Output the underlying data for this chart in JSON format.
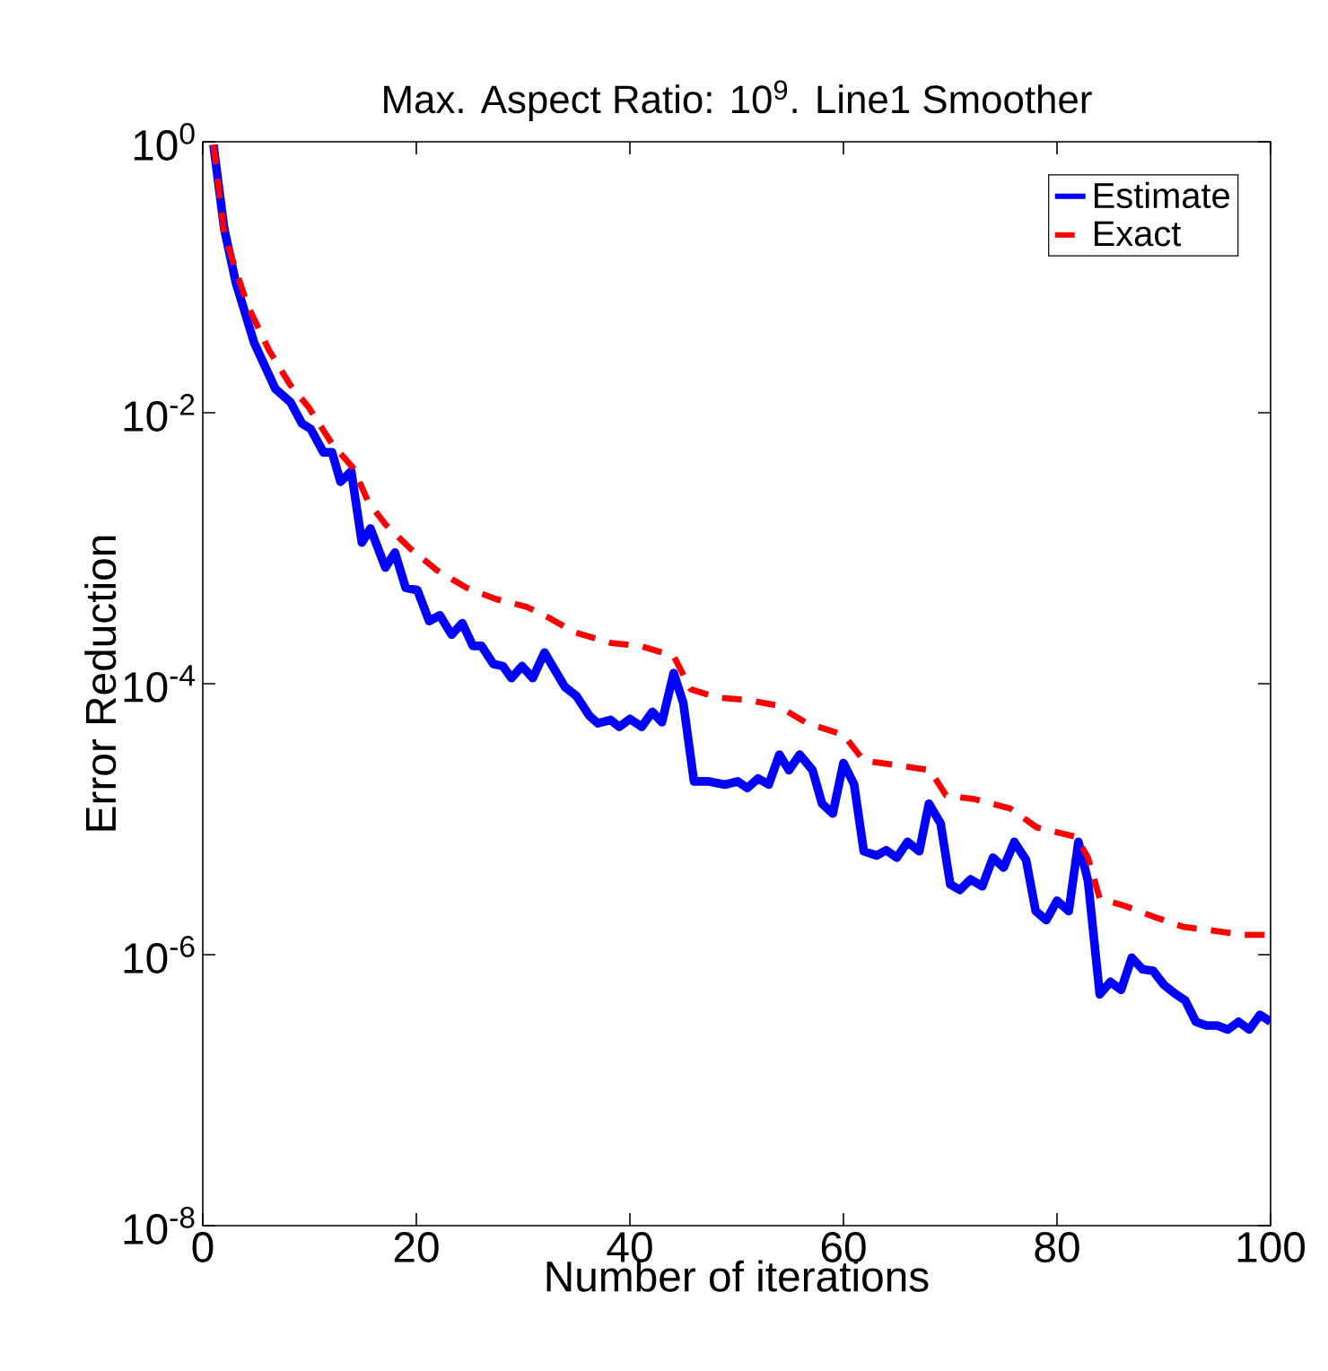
{
  "chart_data": {
    "type": "line",
    "title": "Max. Aspect Ratio: 10$^{9}$. Line1 Smoother",
    "xlabel": "Number of iterations",
    "ylabel": "Error Reduction",
    "log": "y",
    "legend": "top right",
    "xlim": [
      0,
      100
    ],
    "xticks": [
      0,
      20,
      40,
      60,
      80,
      100
    ],
    "ylim": [
      1e-08,
      1
    ],
    "yticks": [
      {
        "value": 1e-08,
        "label": "10$^{-8}$"
      },
      {
        "value": 1e-06,
        "label": "10$^{-6}$"
      },
      {
        "value": 0.0001,
        "label": "10$^{-4}$"
      },
      {
        "value": 0.01,
        "label": "10$^{-2}$"
      },
      {
        "value": 1,
        "label": "10$^{0}$"
      }
    ],
    "series": [
      {
        "name": "Estimate",
        "color": "#0000ff",
        "line_style": "solid",
        "x": [
          1,
          2,
          3.1,
          4.8,
          6.8,
          8.2,
          9.3,
          10.1,
          11.3,
          12.1,
          12.9,
          13.9,
          14.9,
          15.7,
          17.1,
          18,
          19,
          20.1,
          21.2,
          22.2,
          23.3,
          24.3,
          25.3,
          26.1,
          27.2,
          28.1,
          28.9,
          29.9,
          30.9,
          32,
          33.9,
          35,
          36.2,
          37,
          38.2,
          39,
          40,
          41.1,
          42.1,
          43,
          44.1,
          45,
          46,
          47.4,
          48.9,
          50.1,
          51,
          52,
          53,
          54,
          54.9,
          55.9,
          57.1,
          58,
          59,
          60,
          61,
          61.9,
          63.1,
          64,
          65,
          66,
          67.1,
          68,
          69.1,
          70,
          70.9,
          71.9,
          73,
          74,
          75,
          76,
          77.1,
          78,
          79,
          80,
          81.1,
          82,
          82.9,
          84,
          85,
          86,
          87,
          88,
          89,
          90,
          91,
          92,
          93,
          94,
          95,
          96,
          97,
          98,
          99,
          100
        ],
        "values": [
          0.95,
          0.23,
          0.091,
          0.033,
          0.015,
          0.012,
          0.0083,
          0.0076,
          0.0051,
          0.0051,
          0.0031,
          0.0037,
          0.0011,
          0.0014,
          0.00072,
          0.00093,
          0.00051,
          0.00049,
          0.00029,
          0.00032,
          0.00023,
          0.00028,
          0.00019,
          0.00019,
          0.00014,
          0.000135,
          0.00011,
          0.000135,
          0.00011,
          0.00017,
          9.5e-05,
          8.1e-05,
          5.8e-05,
          5.1e-05,
          5.4e-05,
          4.8e-05,
          5.5e-05,
          4.8e-05,
          6.2e-05,
          5.2e-05,
          0.00012,
          7.2e-05,
          1.9e-05,
          1.9e-05,
          1.8e-05,
          1.9e-05,
          1.7e-05,
          2e-05,
          1.8e-05,
          3e-05,
          2.3e-05,
          3e-05,
          2.3e-05,
          1.3e-05,
          1.1e-05,
          2.6e-05,
          1.8e-05,
          5.8e-06,
          5.4e-06,
          5.9e-06,
          5.2e-06,
          6.8e-06,
          5.8e-06,
          1.3e-05,
          9.3e-06,
          3.3e-06,
          3e-06,
          3.6e-06,
          3.2e-06,
          5.2e-06,
          4.4e-06,
          6.8e-06,
          5e-06,
          2.1e-06,
          1.8e-06,
          2.5e-06,
          2.1e-06,
          6.8e-06,
          3.5e-06,
          5.1e-07,
          6.3e-07,
          5.5e-07,
          9.5e-07,
          7.8e-07,
          7.6e-07,
          6e-07,
          5.2e-07,
          4.6e-07,
          3.2e-07,
          3e-07,
          3e-07,
          2.8e-07,
          3.2e-07,
          2.8e-07,
          3.6e-07,
          3.2e-07
        ]
      },
      {
        "name": "Exact",
        "color": "#ff0000",
        "line_style": "dashed",
        "x": [
          1,
          2,
          2.9,
          4.2,
          6.2,
          8.2,
          9.9,
          12.1,
          14.1,
          15.5,
          17.1,
          19.4,
          21.9,
          24.7,
          27.5,
          30.3,
          32.3,
          34.8,
          38.2,
          41,
          44.1,
          45.7,
          48.2,
          51,
          53.8,
          56.6,
          60,
          61.9,
          65,
          68.1,
          69.6,
          72.4,
          75.6,
          78.1,
          81.8,
          82.9,
          84,
          86.3,
          89.1,
          91.9,
          94.7,
          97.5,
          100
        ],
        "values": [
          0.95,
          0.21,
          0.126,
          0.062,
          0.029,
          0.016,
          0.011,
          0.0059,
          0.0039,
          0.0022,
          0.0015,
          0.001,
          0.00069,
          0.00051,
          0.00042,
          0.00037,
          0.00031,
          0.00024,
          0.0002,
          0.00019,
          0.00016,
          9.1e-05,
          7.9e-05,
          7.6e-05,
          6.9e-05,
          5.1e-05,
          4.2e-05,
          2.7e-05,
          2.5e-05,
          2.3e-05,
          1.5e-05,
          1.4e-05,
          1.2e-05,
          8.7e-06,
          7.4e-06,
          5.2e-06,
          2.6e-06,
          2.3e-06,
          1.9e-06,
          1.6e-06,
          1.5e-06,
          1.4e-06,
          1.4e-06
        ]
      }
    ]
  }
}
